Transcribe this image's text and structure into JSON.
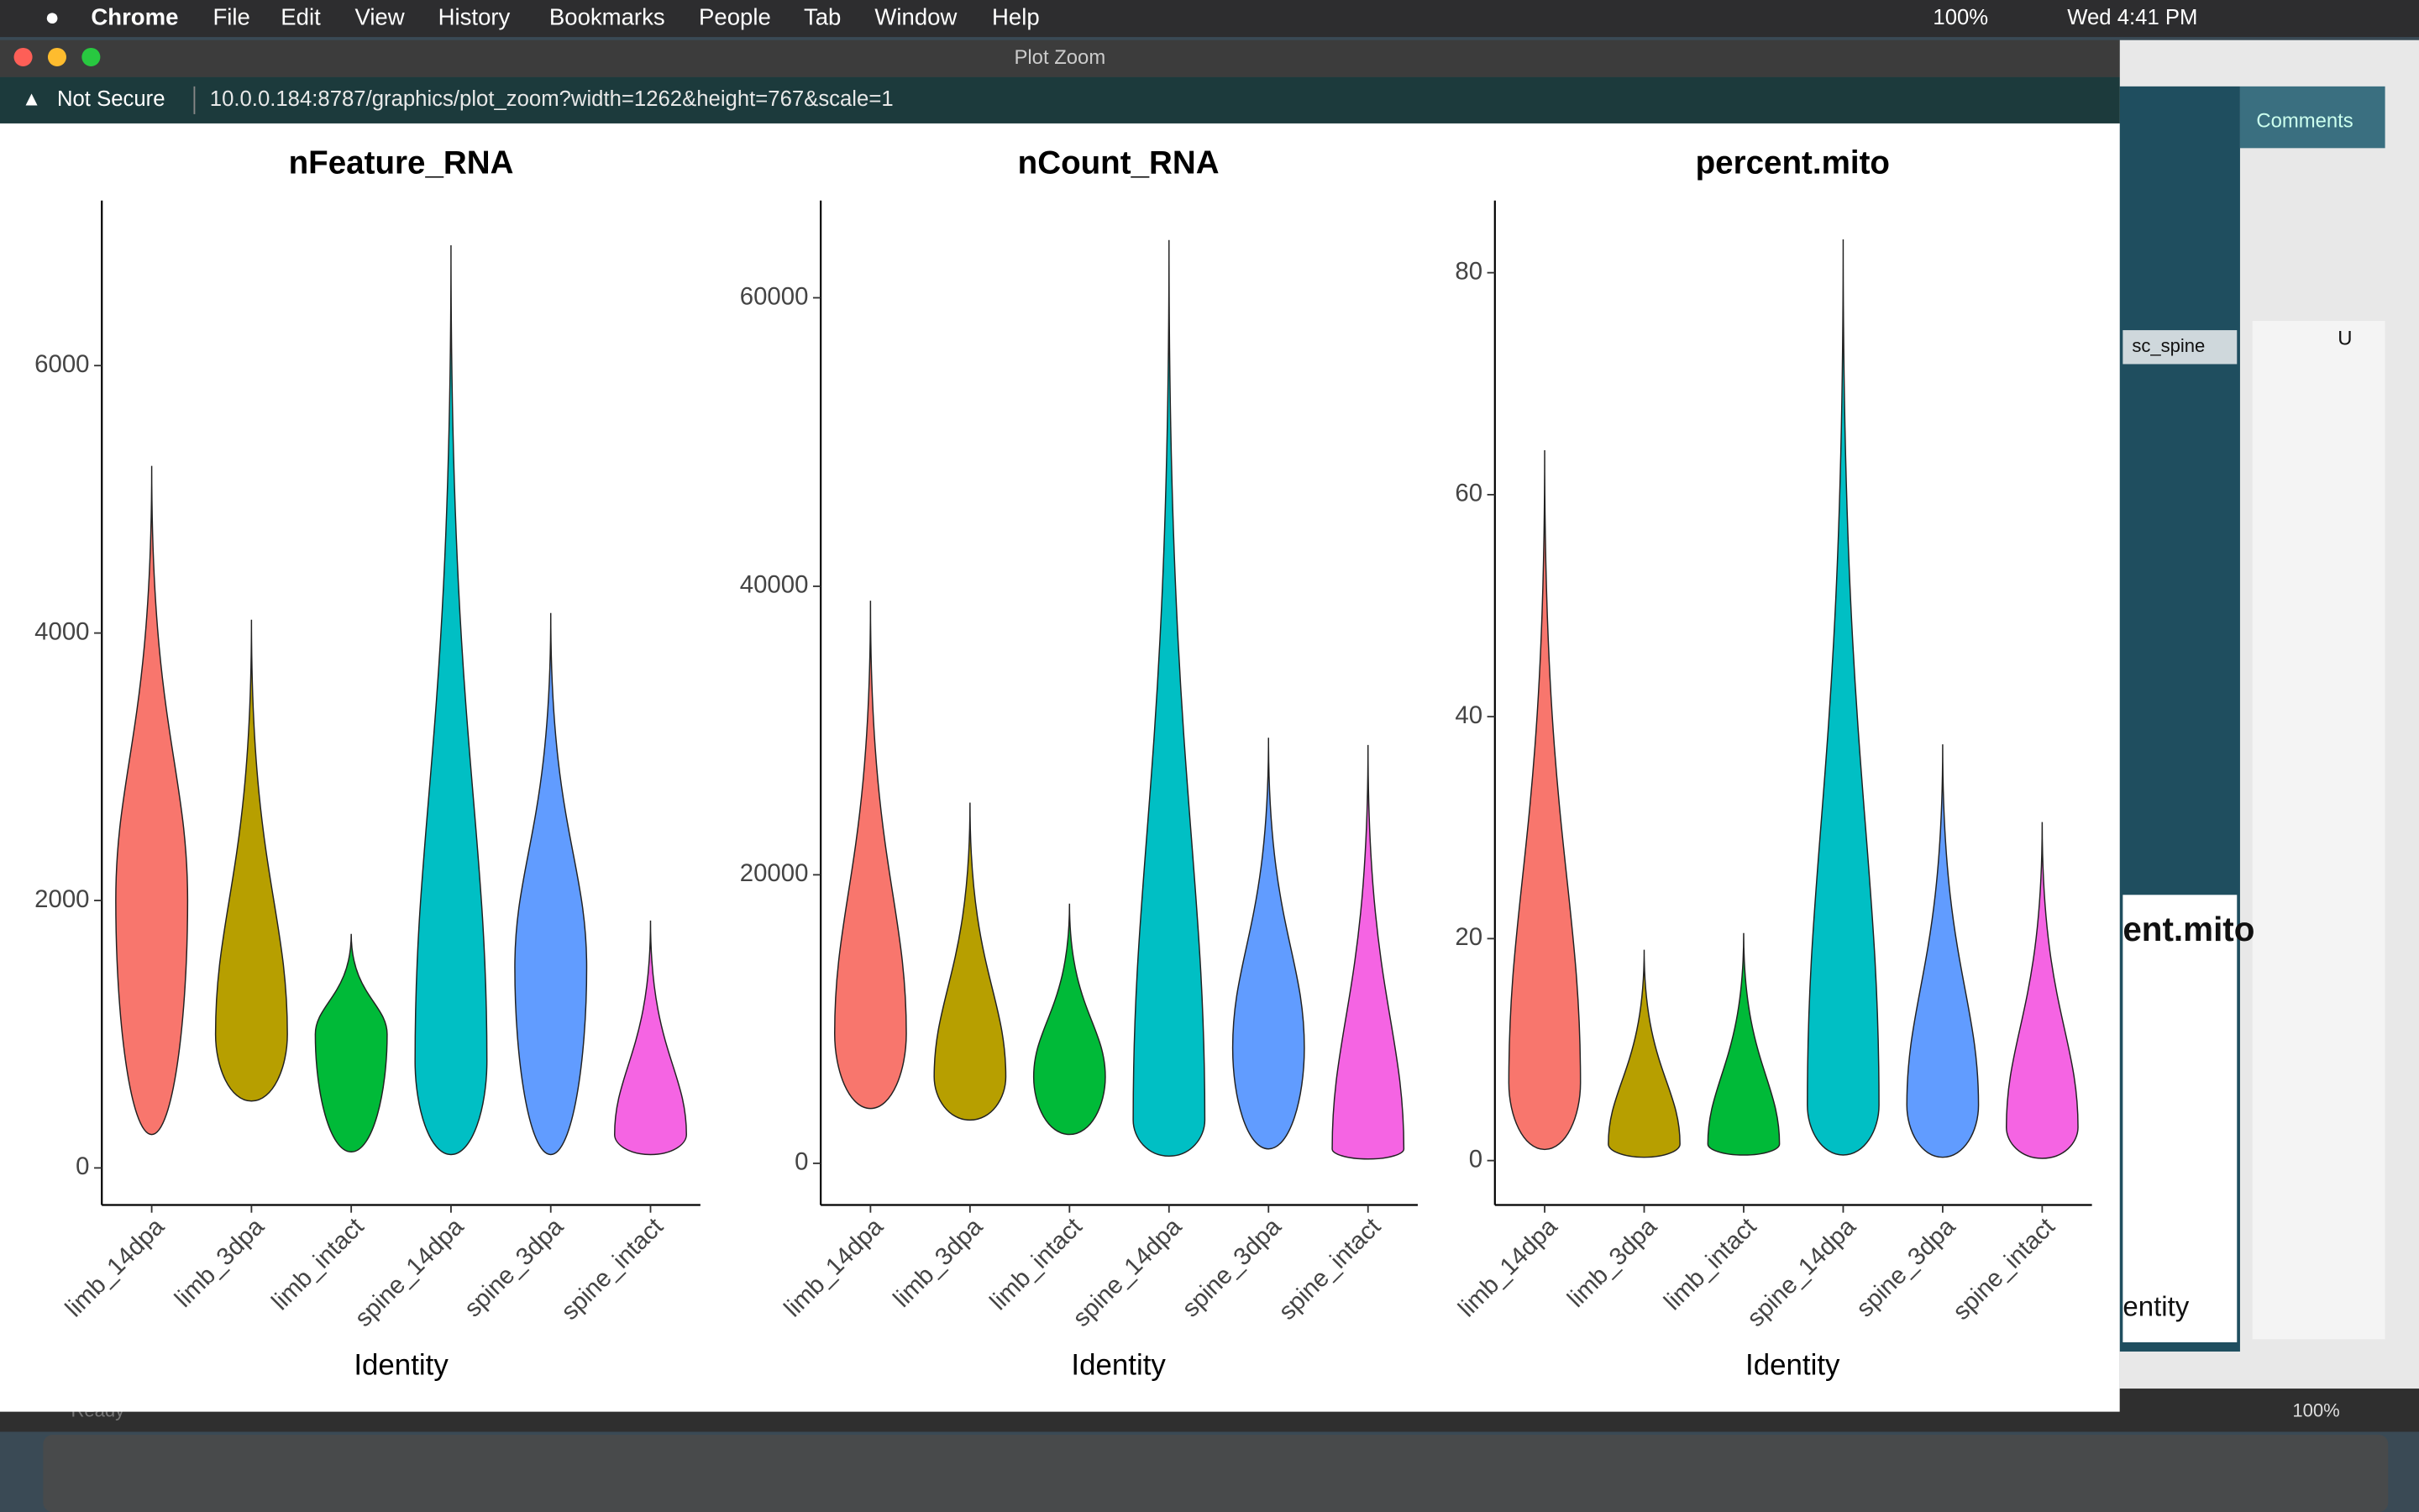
{
  "menubar": {
    "app": "Chrome",
    "items": [
      "File",
      "Edit",
      "View",
      "History",
      "Bookmarks",
      "People",
      "Tab",
      "Window",
      "Help"
    ],
    "battery": "100%",
    "clock": "Wed 4:41 PM"
  },
  "window": {
    "title": "Plot Zoom",
    "security": "Not Secure",
    "url": "10.0.0.184:8787/graphics/plot_zoom?width=1262&height=767&scale=1"
  },
  "background_app": {
    "comments": "Comments",
    "project": "sc_spine",
    "column": "U",
    "plot_title": "ent.mito",
    "axis_title": "entity",
    "zoom": "100%",
    "status": "Ready"
  },
  "chart_data": [
    {
      "type": "violin",
      "title": "nFeature_RNA",
      "x_label": "Identity",
      "categories": [
        "limb_14dpa",
        "limb_3dpa",
        "limb_intact",
        "spine_14dpa",
        "spine_3dpa",
        "spine_intact"
      ],
      "colors": [
        "#f8766d",
        "#b79f00",
        "#00ba38",
        "#00bfc4",
        "#619cff",
        "#f564e3"
      ],
      "min": [
        250,
        500,
        120,
        100,
        100,
        100
      ],
      "median": [
        2000,
        1000,
        1000,
        800,
        1500,
        250
      ],
      "max": [
        5250,
        4100,
        1750,
        6900,
        4150,
        1850
      ],
      "ylim": [
        -277,
        7234
      ],
      "yticks": [
        0,
        2000,
        4000,
        6000
      ]
    },
    {
      "type": "violin",
      "title": "nCount_RNA",
      "x_label": "Identity",
      "categories": [
        "limb_14dpa",
        "limb_3dpa",
        "limb_intact",
        "spine_14dpa",
        "spine_3dpa",
        "spine_intact"
      ],
      "colors": [
        "#f8766d",
        "#b79f00",
        "#00ba38",
        "#00bfc4",
        "#619cff",
        "#f564e3"
      ],
      "min": [
        3800,
        3000,
        2000,
        500,
        1000,
        300
      ],
      "median": [
        9000,
        6000,
        6000,
        3000,
        8000,
        1000
      ],
      "max": [
        39000,
        25000,
        18000,
        64000,
        29500,
        29000
      ],
      "ylim": [
        -2888,
        66738
      ],
      "yticks": [
        0,
        20000,
        40000,
        60000
      ]
    },
    {
      "type": "violin",
      "title": "percent.mito",
      "x_label": "Identity",
      "categories": [
        "limb_14dpa",
        "limb_3dpa",
        "limb_intact",
        "spine_14dpa",
        "spine_3dpa",
        "spine_intact"
      ],
      "colors": [
        "#f8766d",
        "#b79f00",
        "#00ba38",
        "#00bfc4",
        "#619cff",
        "#f564e3"
      ],
      "min": [
        1,
        0.3,
        0.5,
        0.5,
        0.3,
        0.2
      ],
      "median": [
        7,
        1.5,
        1.5,
        5,
        5,
        3
      ],
      "max": [
        64,
        19,
        20.5,
        83,
        37.5,
        30.5
      ],
      "ylim": [
        -4,
        86.5
      ],
      "yticks": [
        0,
        20,
        40,
        60,
        80
      ]
    }
  ]
}
